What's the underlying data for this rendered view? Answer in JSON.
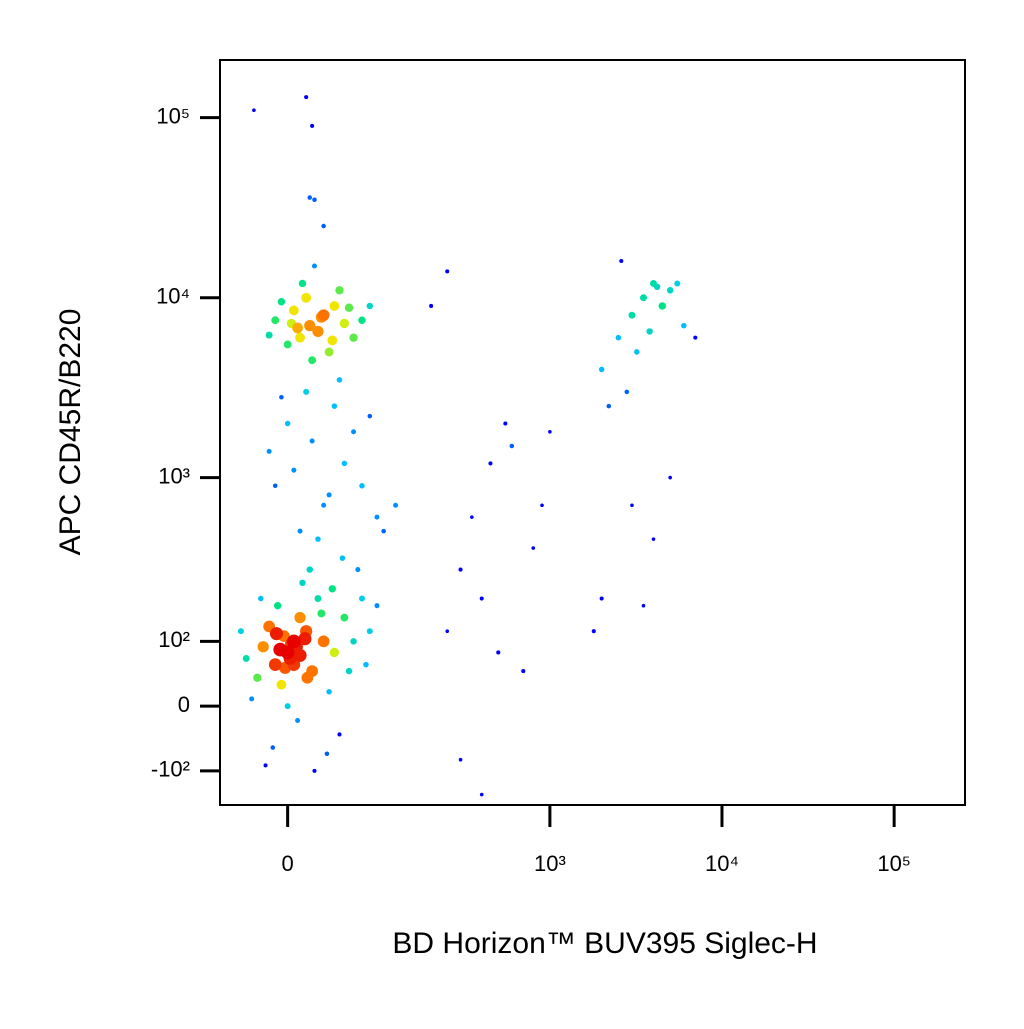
{
  "chart_data": {
    "type": "scatter",
    "x_label": "BD Horizon™ BUV395 Siglec-H",
    "y_label": "APC CD45R/B220",
    "xlim": [
      -62,
      258000
    ],
    "ylim": [
      -176,
      209000
    ],
    "xticks": [
      0,
      {
        "value": 1000,
        "label": "10³"
      },
      {
        "value": 10000,
        "label": "10⁴"
      },
      {
        "value": 100000,
        "label": "10⁵"
      }
    ],
    "yticks": [
      {
        "value": -100,
        "label": "-10²"
      },
      0,
      {
        "value": 100,
        "label": "10²"
      },
      {
        "value": 1000,
        "label": "10³"
      },
      {
        "value": 10000,
        "label": "10⁴"
      },
      {
        "value": 100000,
        "label": "10⁵"
      }
    ],
    "color": "#0000ff",
    "x": [
      0,
      5,
      -10,
      15,
      -20,
      20,
      10,
      -5,
      30,
      -25,
      25,
      -15,
      40,
      -30,
      8,
      12,
      -8,
      35,
      50,
      -35,
      60,
      45,
      -12,
      18,
      70,
      0,
      -18,
      22,
      55,
      80,
      5,
      -3,
      7,
      2,
      -6,
      10,
      3,
      -2,
      14,
      -9,
      28,
      38,
      65,
      90,
      -40,
      33,
      48,
      75,
      -22,
      16,
      10,
      30,
      -10,
      50,
      20,
      0,
      40,
      70,
      90,
      -15,
      15,
      60,
      25,
      5,
      35,
      80,
      100,
      120,
      45,
      -5,
      18,
      10,
      30,
      0,
      40,
      -10,
      25,
      50,
      5,
      35,
      15,
      60,
      -5,
      20,
      45,
      28,
      8,
      55,
      12,
      -15,
      70,
      22,
      38,
      3,
      80,
      -28,
      15,
      20,
      22,
      30,
      18,
      250,
      300,
      400,
      500,
      600,
      700,
      350,
      450,
      800,
      900,
      300,
      400,
      1000,
      550,
      200,
      250,
      3000,
      3500,
      4000,
      5000,
      2500,
      2000,
      4500,
      3200,
      6000,
      2800,
      2200,
      3800,
      4200,
      5500,
      7000,
      2600,
      3000,
      4000,
      2000,
      1800,
      3500,
      5000
    ],
    "y": [
      80,
      100,
      60,
      120,
      90,
      50,
      150,
      30,
      100,
      40,
      200,
      130,
      80,
      10,
      -20,
      250,
      180,
      20,
      150,
      70,
      100,
      -40,
      -60,
      300,
      200,
      0,
      -90,
      -100,
      50,
      120,
      60,
      110,
      90,
      70,
      85,
      75,
      95,
      55,
      105,
      115,
      160,
      230,
      300,
      180,
      120,
      -70,
      350,
      60,
      200,
      40,
      500,
      700,
      900,
      1200,
      1600,
      2000,
      2500,
      900,
      600,
      1400,
      3000,
      1800,
      450,
      1100,
      800,
      2200,
      500,
      700,
      3500,
      2800,
      7000,
      6000,
      8000,
      5500,
      9000,
      7500,
      6500,
      7200,
      8500,
      5000,
      10000,
      6000,
      9500,
      4500,
      11000,
      7800,
      6800,
      8800,
      12000,
      6200,
      7500,
      15000,
      5800,
      7200,
      9000,
      110000,
      130000,
      90000,
      35000,
      25000,
      36000,
      120,
      300,
      200,
      80,
      1500,
      50,
      600,
      1200,
      400,
      700,
      -80,
      -150,
      1800,
      2000,
      9000,
      14000,
      8000,
      10000,
      12000,
      11000,
      6000,
      4000,
      9000,
      5000,
      7000,
      3000,
      2500,
      6500,
      11500,
      12000,
      6000,
      16000,
      700,
      450,
      200,
      120,
      180,
      1000
    ]
  }
}
